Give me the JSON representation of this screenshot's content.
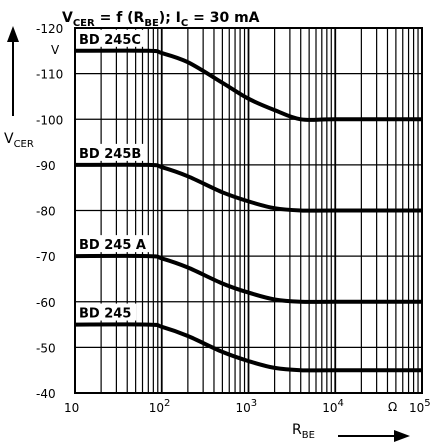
{
  "chart_data": {
    "type": "line",
    "title": "V_CER = f (R_BE);  I_C = 30 mA",
    "title_parts": {
      "v": "V",
      "v_sub": "CER",
      "func": " = f (R",
      "r_sub": "BE",
      "rest": ");  I",
      "ic_sub": "C",
      "ic_val": " = 30 mA"
    },
    "ylabel": {
      "main": "V",
      "sub": "CER"
    },
    "xlabel": {
      "main": "R",
      "sub": "BE"
    },
    "x_scale": "log",
    "xlim": [
      10,
      100000
    ],
    "ylim": [
      -120,
      -40
    ],
    "y_unit": "V",
    "x_unit": "Ω",
    "grid": true,
    "y_ticks": [
      {
        "value": -120,
        "label": "-120"
      },
      {
        "value": -110,
        "label": "-110"
      },
      {
        "value": -100,
        "label": "-100"
      },
      {
        "value": -90,
        "label": "-90"
      },
      {
        "value": -80,
        "label": "-80"
      },
      {
        "value": -70,
        "label": "-70"
      },
      {
        "value": -60,
        "label": "-60"
      },
      {
        "value": -50,
        "label": "-50"
      },
      {
        "value": -40,
        "label": "-40"
      }
    ],
    "x_ticks": [
      {
        "value": 10,
        "base": "10",
        "exp": ""
      },
      {
        "value": 100,
        "base": "10",
        "exp": "2"
      },
      {
        "value": 1000,
        "base": "10",
        "exp": "3"
      },
      {
        "value": 10000,
        "base": "10",
        "exp": "4"
      },
      {
        "value": 100000,
        "base": "10",
        "exp": "5"
      }
    ],
    "series": [
      {
        "name": "BD 245 C",
        "label": "BD 245C",
        "x": [
          10,
          70,
          100,
          200,
          500,
          1000,
          2000,
          4000,
          10000,
          100000
        ],
        "values": [
          -115,
          -115,
          -114.5,
          -112.5,
          -108,
          -104.5,
          -102,
          -100,
          -100,
          -100
        ]
      },
      {
        "name": "BD 245 B",
        "label": "BD 245B",
        "x": [
          10,
          70,
          100,
          200,
          500,
          1000,
          2000,
          4000,
          10000,
          100000
        ],
        "values": [
          -90,
          -90,
          -89.5,
          -87.5,
          -84,
          -82,
          -80.5,
          -80,
          -80,
          -80
        ]
      },
      {
        "name": "BD 245 A",
        "label": "BD 245 A",
        "x": [
          10,
          70,
          100,
          200,
          500,
          1000,
          2000,
          4000,
          10000,
          100000
        ],
        "values": [
          -70,
          -70,
          -69.5,
          -67.5,
          -64,
          -62,
          -60.5,
          -60,
          -60,
          -60
        ]
      },
      {
        "name": "BD 245",
        "label": "BD 245",
        "x": [
          10,
          70,
          100,
          200,
          500,
          1000,
          2000,
          4000,
          10000,
          100000
        ],
        "values": [
          -55,
          -55,
          -54.5,
          -52.5,
          -49,
          -47,
          -45.5,
          -45,
          -45,
          -45
        ]
      }
    ]
  }
}
